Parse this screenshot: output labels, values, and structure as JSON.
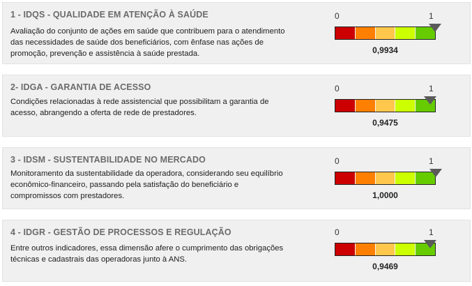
{
  "scale": {
    "min_label": "0",
    "max_label": "1"
  },
  "segment_colors": [
    "#cc0000",
    "#ff7f00",
    "#ffc84d",
    "#ccff00",
    "#66cc00"
  ],
  "dimensions": [
    {
      "title": "1 - IDQS - QUALIDADE EM ATENÇÃO À SAÚDE",
      "description": "Avaliação do conjunto de ações em saúde que contribuem para o atendimento das necessidades de saúde dos beneficiários, com ênfase nas ações de promoção, prevenção e assistência à saúde prestada.",
      "score_text": "0,9934",
      "score_value": 0.9934
    },
    {
      "title": "2- IDGA - GARANTIA DE ACESSO",
      "description": "Condições relacionadas à rede assistencial que possibilitam a garantia de acesso, abrangendo a oferta de rede de prestadores.",
      "score_text": "0,9475",
      "score_value": 0.9475
    },
    {
      "title": "3 - IDSM - SUSTENTABILIDADE NO MERCADO",
      "description": "Monitoramento da sustentabilidade da operadora, considerando seu equilíbrio econômico-financeiro, passando pela satisfação do beneficiário e compromissos com prestadores.",
      "score_text": "1,0000",
      "score_value": 1.0
    },
    {
      "title": "4 - IDGR - GESTÃO DE PROCESSOS E REGULAÇÃO",
      "description": "Entre outros indicadores, essa dimensão afere o cumprimento das obrigações técnicas e cadastrais das operadoras junto à ANS.",
      "score_text": "0,9469",
      "score_value": 0.9469
    }
  ]
}
